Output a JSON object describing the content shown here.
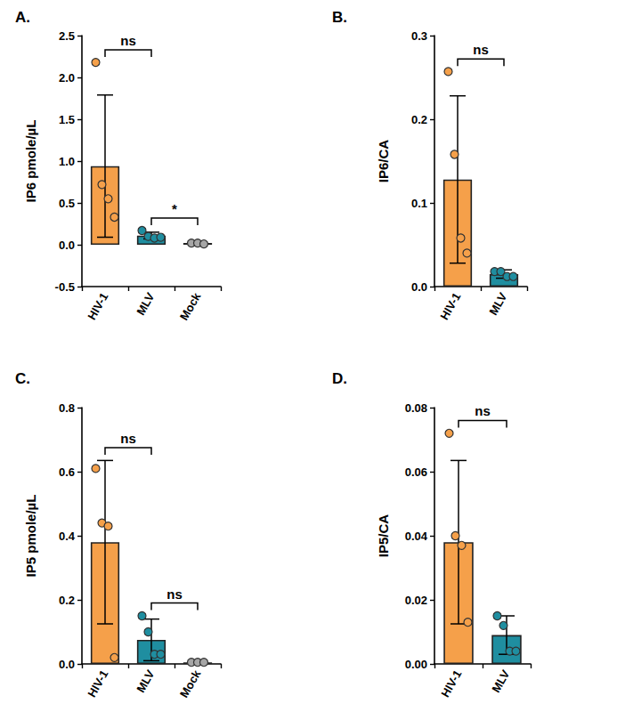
{
  "chart_data": [
    {
      "type": "bar",
      "title": "A.",
      "ylabel": "IP6 pmole/µL",
      "categories": [
        "HIV-1",
        "MLV",
        "Mock"
      ],
      "values": [
        0.94,
        0.11,
        0.02
      ],
      "errors": [
        0.85,
        0.04,
        0.01
      ],
      "points": [
        [
          2.18,
          0.72,
          0.55,
          0.33
        ],
        [
          0.17,
          0.1,
          0.08,
          0.09
        ],
        [
          0.02,
          0.02,
          0.01
        ]
      ],
      "colors": [
        "#f5a04a",
        "#1f8ea0",
        "#a6a6a6"
      ],
      "ylim": [
        -0.5,
        2.5
      ],
      "yticks": [
        -0.5,
        {
          "value": 0,
          "label": "0.0"
        },
        0.5,
        {
          "value": 1,
          "label": "1.0"
        },
        1.5,
        {
          "value": 2,
          "label": "2.0"
        },
        2.5
      ],
      "grid": false,
      "annotations": [
        {
          "from": "HIV-1",
          "to": "MLV",
          "label": "ns"
        },
        {
          "from": "MLV",
          "to": "Mock",
          "label": "*"
        }
      ]
    },
    {
      "type": "bar",
      "title": "B.",
      "ylabel": "IP6/CA",
      "categories": [
        "HIV-1",
        "MLV"
      ],
      "values": [
        0.128,
        0.015
      ],
      "errors": [
        0.1,
        0.005
      ],
      "points": [
        [
          0.257,
          0.158,
          0.058,
          0.04
        ],
        [
          0.018,
          0.018,
          0.012,
          0.012
        ]
      ],
      "colors": [
        "#f5a04a",
        "#1f8ea0"
      ],
      "ylim": [
        0,
        0.3
      ],
      "yticks": [
        {
          "value": 0,
          "label": "0.0"
        },
        0.1,
        0.2,
        0.3
      ],
      "grid": false,
      "annotations": [
        {
          "from": "HIV-1",
          "to": "MLV",
          "label": "ns"
        }
      ]
    },
    {
      "type": "bar",
      "title": "C.",
      "ylabel": "IP5 pmole/µL",
      "categories": [
        "HIV-1",
        "MLV",
        "Mock"
      ],
      "values": [
        0.38,
        0.075,
        0.005
      ],
      "errors": [
        0.255,
        0.065,
        0.003
      ],
      "points": [
        [
          0.61,
          0.44,
          0.43,
          0.02
        ],
        [
          0.15,
          0.1,
          0.03,
          0.03
        ],
        [
          0.005,
          0.005,
          0.005
        ]
      ],
      "colors": [
        "#f5a04a",
        "#1f8ea0",
        "#a6a6a6"
      ],
      "ylim": [
        0,
        0.8
      ],
      "yticks": [
        {
          "value": 0,
          "label": "0.0"
        },
        0.2,
        0.4,
        0.6,
        0.8
      ],
      "grid": false,
      "annotations": [
        {
          "from": "HIV-1",
          "to": "MLV",
          "label": "ns"
        },
        {
          "from": "MLV",
          "to": "Mock",
          "label": "ns"
        }
      ]
    },
    {
      "type": "bar",
      "title": "D.",
      "ylabel": "IP5/CA",
      "categories": [
        "HIV-1",
        "MLV"
      ],
      "values": [
        0.038,
        0.009
      ],
      "errors": [
        0.0255,
        0.006
      ],
      "points": [
        [
          0.072,
          0.04,
          0.037,
          0.013
        ],
        [
          0.015,
          0.012,
          0.004,
          0.004
        ]
      ],
      "colors": [
        "#f5a04a",
        "#1f8ea0"
      ],
      "ylim": [
        0,
        0.08
      ],
      "yticks": [
        {
          "value": 0,
          "label": "0.00"
        },
        0.02,
        0.04,
        0.06,
        0.08
      ],
      "grid": false,
      "annotations": [
        {
          "from": "HIV-1",
          "to": "MLV",
          "label": "ns"
        }
      ]
    }
  ]
}
